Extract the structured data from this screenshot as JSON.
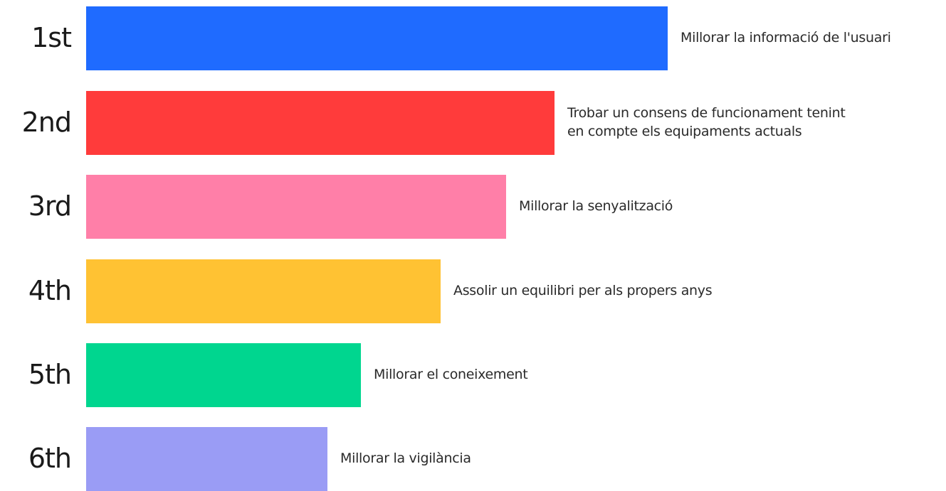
{
  "chart_data": {
    "type": "bar",
    "orientation": "horizontal",
    "categories": [
      "1st",
      "2nd",
      "3rd",
      "4th",
      "5th",
      "6th"
    ],
    "items": [
      {
        "rank": "1st",
        "lines": [
          "Millorar la informació de l'usuari"
        ],
        "value": 100,
        "color": "#1f6bff"
      },
      {
        "rank": "2nd",
        "lines": [
          "Trobar un consens de funcionament tenint",
          "en compte els equipaments actuals"
        ],
        "value": 80.5,
        "color": "#ff3b3b"
      },
      {
        "rank": "3rd",
        "lines": [
          "Millorar la senyalització"
        ],
        "value": 72.2,
        "color": "#ff7fa8"
      },
      {
        "rank": "4th",
        "lines": [
          "Assolir un equilibri per als propers anys"
        ],
        "value": 61,
        "color": "#ffc233"
      },
      {
        "rank": "5th",
        "lines": [
          "Millorar el coneixement"
        ],
        "value": 47.2,
        "color": "#00d68f"
      },
      {
        "rank": "6th",
        "lines": [
          "Millorar la vigilància"
        ],
        "value": 41.5,
        "color": "#9a9cf5"
      }
    ],
    "title": "",
    "xlabel": "",
    "ylabel": "",
    "grid": false,
    "legend": "none"
  }
}
